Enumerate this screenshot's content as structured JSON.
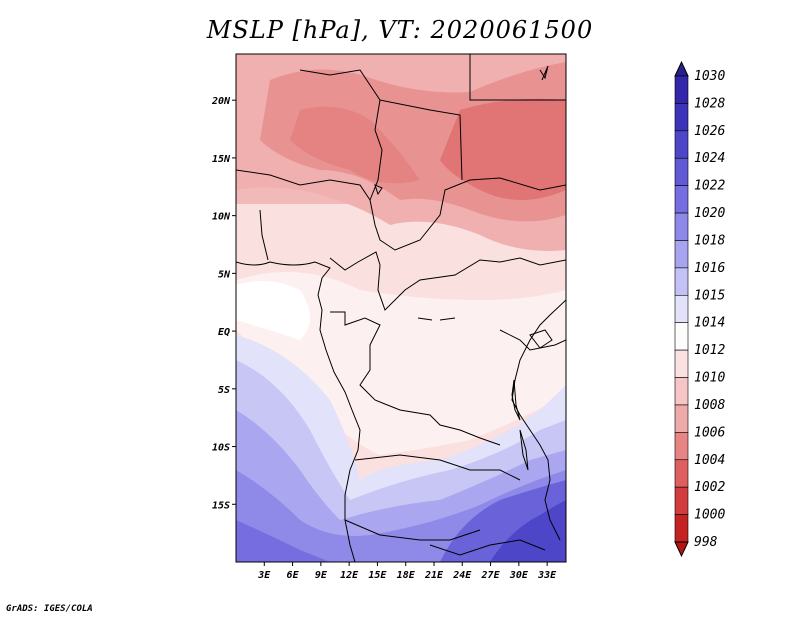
{
  "title": "MSLP [hPa], VT: 2020061500",
  "footer": "GrADS: IGES/COLA",
  "map": {
    "lon_range_deg": [
      0,
      35
    ],
    "lat_range_deg": [
      -20,
      24
    ],
    "x_tick_labels": [
      "3E",
      "6E",
      "9E",
      "12E",
      "15E",
      "18E",
      "21E",
      "24E",
      "27E",
      "30E",
      "33E"
    ],
    "y_tick_labels": [
      "20N",
      "15N",
      "10N",
      "5N",
      "EQ",
      "5S",
      "10S",
      "15S"
    ]
  },
  "colorbar": {
    "levels": [
      "1030",
      "1028",
      "1026",
      "1024",
      "1022",
      "1020",
      "1018",
      "1016",
      "1015",
      "1014",
      "1012",
      "1010",
      "1008",
      "1006",
      "1004",
      "1002",
      "1000",
      "998"
    ],
    "colors": [
      "#2a1f8f",
      "#3326a8",
      "#3e34bb",
      "#4e46c8",
      "#6259d4",
      "#766ee0",
      "#8e88e8",
      "#a8a4ef",
      "#c4c2f5",
      "#e2e2fa",
      "#fdfcfc",
      "#fbe2e2",
      "#f6c6c6",
      "#eea9a9",
      "#e78585",
      "#de5f5f",
      "#d33c3c",
      "#c52222",
      "#b31414"
    ]
  }
}
